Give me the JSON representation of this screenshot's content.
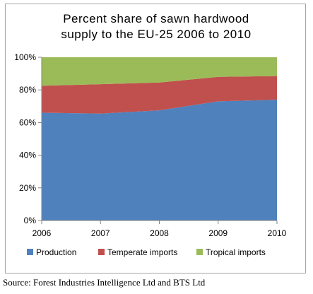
{
  "chart_data": {
    "type": "area",
    "stacked": true,
    "title_lines": [
      "Percent share of sawn hardwood",
      "supply to the EU-25 2006 to 2010"
    ],
    "x": [
      "2006",
      "2007",
      "2008",
      "2009",
      "2010"
    ],
    "series": [
      {
        "name": "Production",
        "values": [
          66,
          65.5,
          67.5,
          73,
          74
        ],
        "color": "#4f81bd"
      },
      {
        "name": "Temperate imports",
        "values": [
          16.5,
          18,
          17,
          15,
          14.5
        ],
        "color": "#c0504d"
      },
      {
        "name": "Tropical imports",
        "values": [
          17.5,
          16.5,
          15.5,
          12,
          11.5
        ],
        "color": "#9bbb59"
      }
    ],
    "y_ticks": [
      "0%",
      "20%",
      "40%",
      "60%",
      "80%",
      "100%"
    ],
    "ylim": [
      0,
      100
    ],
    "grid": false,
    "legend_position": "bottom"
  },
  "source_note": "Source: Forest Industries Intelligence Ltd and BTS Ltd"
}
